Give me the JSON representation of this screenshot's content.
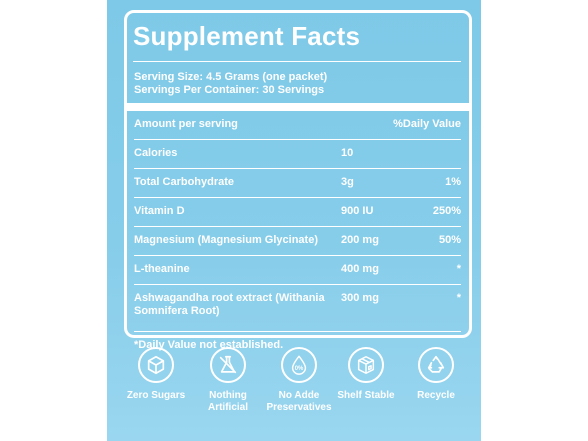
{
  "title": "Supplement Facts",
  "serving_size": "Serving Size: 4.5 Grams (one packet)",
  "servings_per_container": "Servings Per Container: 30 Servings",
  "header": {
    "amount": "Amount per serving",
    "dv": "%Daily Value"
  },
  "rows": [
    {
      "name": "Calories",
      "amount": "10",
      "dv": ""
    },
    {
      "name": "Total Carbohydrate",
      "amount": "3g",
      "dv": "1%"
    },
    {
      "name": "Vitamin D",
      "amount": "900 IU",
      "dv": "250%"
    },
    {
      "name": "Magnesium (Magnesium Glycinate)",
      "amount": "200 mg",
      "dv": "50%"
    },
    {
      "name": "L-theanine",
      "amount": "400 mg",
      "dv": "*"
    },
    {
      "name": "Ashwagandha  root extract (Withania Somnifera Root)",
      "amount": "300 mg",
      "dv": "*"
    }
  ],
  "note": "*Daily Value not established.",
  "badges": [
    {
      "icon": "cube-icon",
      "label": "Zero Sugars"
    },
    {
      "icon": "flask-crossed-icon",
      "label": "Nothing Artificial"
    },
    {
      "icon": "drop-zero-percent-icon",
      "label": "No Adde Preservatives"
    },
    {
      "icon": "box-icon",
      "label": "Shelf Stable"
    },
    {
      "icon": "recycle-icon",
      "label": "Recycle"
    }
  ],
  "drop_text": "0%",
  "colors": {
    "background": "#86cdea",
    "text": "#ffffff"
  }
}
